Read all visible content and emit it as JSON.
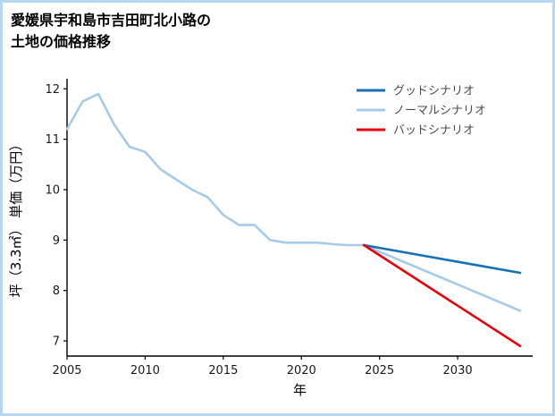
{
  "page": {
    "background": "#ffffff",
    "border_color": "#b4d8ef"
  },
  "chart_data": {
    "type": "line",
    "title": "愛媛県宇和島市吉田町北小路の\n土地の価格推移",
    "xlabel": "年",
    "ylabel": "坪（3.3㎡） 単価（万円）",
    "xlim": [
      2005,
      2034.8
    ],
    "ylim": [
      6.7,
      12.2
    ],
    "xticks": [
      2005,
      2010,
      2015,
      2020,
      2025,
      2030
    ],
    "yticks": [
      7,
      8,
      9,
      10,
      11,
      12
    ],
    "grid": false,
    "legend_position": "top-right",
    "series": [
      {
        "name": "グッドシナリオ",
        "color": "#1570b8",
        "x": [
          2024,
          2034
        ],
        "y": [
          8.9,
          8.35
        ]
      },
      {
        "name": "ノーマルシナリオ",
        "color": "#a6cbe8",
        "x": [
          2005,
          2006,
          2007,
          2008,
          2009,
          2010,
          2011,
          2012,
          2013,
          2014,
          2015,
          2016,
          2017,
          2018,
          2019,
          2020,
          2021,
          2022,
          2023,
          2024,
          2034
        ],
        "y": [
          11.2,
          11.75,
          11.9,
          11.3,
          10.85,
          10.75,
          10.4,
          10.2,
          10.0,
          9.85,
          9.5,
          9.3,
          9.3,
          9.0,
          8.95,
          8.95,
          8.95,
          8.92,
          8.9,
          8.9,
          7.6
        ]
      },
      {
        "name": "バッドシナリオ",
        "color": "#e8000b",
        "x": [
          2024,
          2034
        ],
        "y": [
          8.9,
          6.9
        ]
      }
    ]
  }
}
